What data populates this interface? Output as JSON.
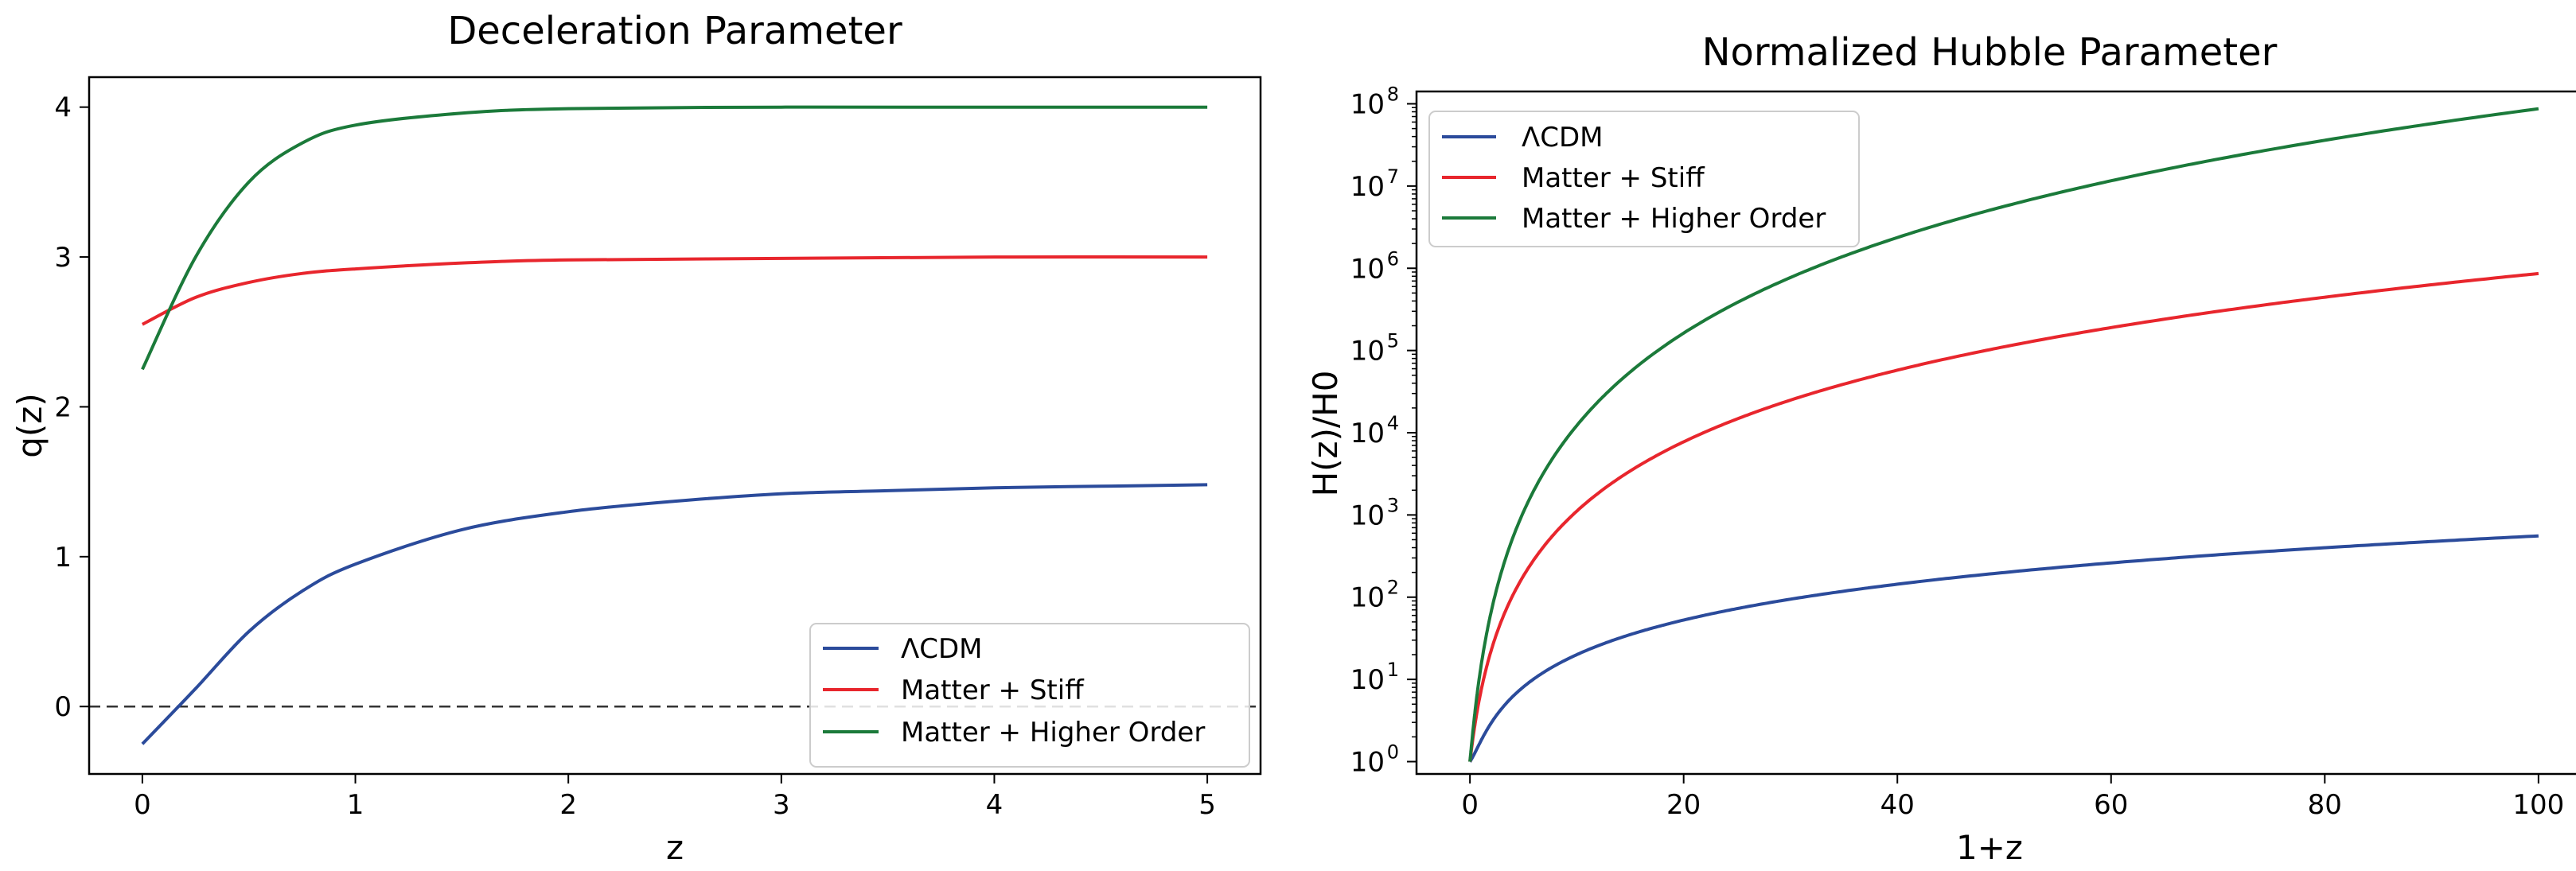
{
  "chart_data": [
    {
      "type": "line",
      "title": "Deceleration Parameter",
      "xlabel": "z",
      "ylabel": "q(z)",
      "xlim": [
        -0.25,
        5.25
      ],
      "ylim": [
        -0.45,
        4.2
      ],
      "xticks": [
        0,
        1,
        2,
        3,
        4,
        5
      ],
      "yticks": [
        0,
        1,
        2,
        3,
        4
      ],
      "legend_position": "lower-right",
      "reference_line": {
        "y": 0,
        "style": "dashed",
        "color": "#333333"
      },
      "series": [
        {
          "name": "ΛCDM",
          "color": "#2b4b9b",
          "x": [
            0,
            0.25,
            0.5,
            0.75,
            1,
            1.5,
            2,
            2.5,
            3,
            3.5,
            4,
            4.5,
            5
          ],
          "y": [
            -0.25,
            0.12,
            0.5,
            0.77,
            0.95,
            1.18,
            1.3,
            1.37,
            1.42,
            1.44,
            1.46,
            1.47,
            1.48
          ]
        },
        {
          "name": "Matter + Stiff",
          "color": "#e8262d",
          "x": [
            0,
            0.25,
            0.5,
            0.75,
            1,
            1.5,
            2,
            3,
            4,
            5
          ],
          "y": [
            2.55,
            2.73,
            2.83,
            2.89,
            2.92,
            2.96,
            2.98,
            2.99,
            3.0,
            3.0
          ]
        },
        {
          "name": "Matter + Higher Order",
          "color": "#1b7a3a",
          "x": [
            0,
            0.25,
            0.5,
            0.75,
            1,
            1.5,
            2,
            3,
            4,
            5
          ],
          "y": [
            2.25,
            3.0,
            3.5,
            3.76,
            3.88,
            3.96,
            3.99,
            4.0,
            4.0,
            4.0
          ]
        }
      ]
    },
    {
      "type": "line",
      "title": "Normalized Hubble Parameter",
      "xlabel": "1+z",
      "ylabel": "H(z)/H0",
      "yscale": "log",
      "xlim": [
        -5,
        105
      ],
      "ylim_log10": [
        -0.15,
        8.15
      ],
      "xticks": [
        0,
        20,
        40,
        60,
        80,
        100
      ],
      "yticks": [
        "10",
        "10",
        "10",
        "10",
        "10",
        "10",
        "10",
        "10",
        "10"
      ],
      "ytick_exponents": [
        "0",
        "1",
        "2",
        "3",
        "4",
        "5",
        "6",
        "7",
        "8"
      ],
      "legend_position": "upper-left",
      "series": [
        {
          "name": "ΛCDM",
          "color": "#2b4b9b",
          "law": "lcdm"
        },
        {
          "name": "Matter + Stiff",
          "color": "#e8262d",
          "law": "stiff"
        },
        {
          "name": "Matter + Higher Order",
          "color": "#1b7a3a",
          "law": "higher"
        }
      ]
    }
  ]
}
